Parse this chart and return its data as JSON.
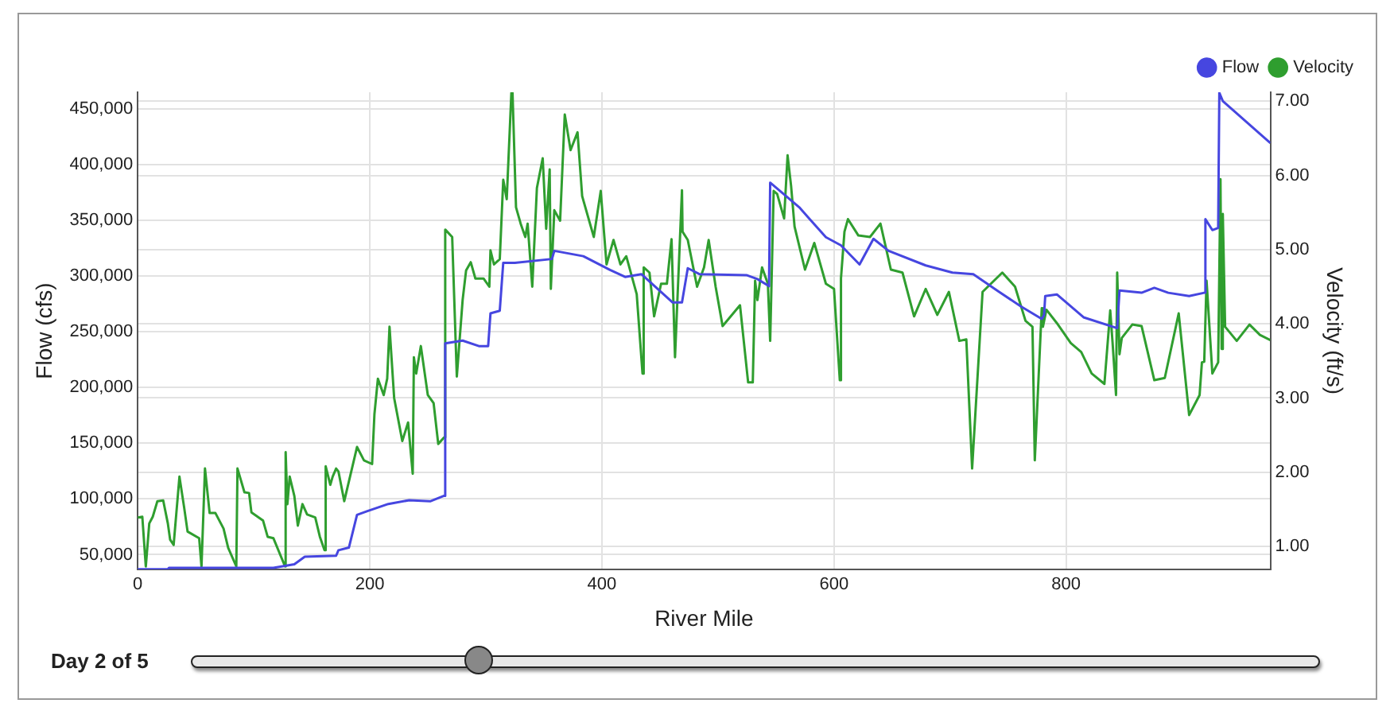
{
  "chart_data": {
    "type": "line",
    "xlabel": "River Mile",
    "ylabel": "Flow (cfs)",
    "y2label": "Velocity (ft/s)",
    "legend": "top right",
    "grid": true,
    "marker": "none",
    "line_style": "solid",
    "xlim": [
      0,
      976
    ],
    "xticks": [
      0,
      200,
      400,
      600,
      800
    ],
    "ylim": [
      36800,
      464700
    ],
    "yticks": [
      {
        "value": 50000,
        "label": "50,000"
      },
      {
        "value": 100000,
        "label": "100,000"
      },
      {
        "value": 150000,
        "label": "150,000"
      },
      {
        "value": 200000,
        "label": "200,000"
      },
      {
        "value": 250000,
        "label": "250,000"
      },
      {
        "value": 300000,
        "label": "300,000"
      },
      {
        "value": 350000,
        "label": "350,000"
      },
      {
        "value": 400000,
        "label": "400,000"
      },
      {
        "value": 450000,
        "label": "450,000"
      }
    ],
    "y2lim": [
      0.69,
      7.12
    ],
    "y2ticks": [
      {
        "value": 1,
        "label": "1.00"
      },
      {
        "value": 2,
        "label": "2.00"
      },
      {
        "value": 3,
        "label": "3.00"
      },
      {
        "value": 4,
        "label": "4.00"
      },
      {
        "value": 5,
        "label": "5.00"
      },
      {
        "value": 6,
        "label": "6.00"
      },
      {
        "value": 7,
        "label": "7.00"
      }
    ],
    "annotations": [
      "Day 2 of 5"
    ],
    "series": [
      {
        "name": "Flow",
        "color": "#4646e0",
        "x": [
          0,
          26,
          27,
          117,
          135,
          144,
          171,
          173,
          182,
          189,
          198,
          216,
          234,
          252,
          264,
          265,
          280,
          294,
          302,
          304,
          312,
          315,
          325,
          357,
          359,
          384,
          407,
          420,
          434,
          461,
          469,
          474,
          484,
          525,
          534,
          544,
          545,
          570,
          593,
          606,
          622,
          634,
          647,
          679,
          702,
          720,
          742,
          761,
          779,
          781,
          782,
          792,
          815,
          844,
          846,
          865,
          876,
          888,
          906,
          919,
          920,
          926,
          931,
          932,
          935,
          976
        ],
        "values": [
          37000,
          37000,
          38300,
          38300,
          41400,
          48200,
          49100,
          54000,
          56400,
          85700,
          89100,
          95500,
          98900,
          97900,
          102800,
          239500,
          242000,
          237100,
          237100,
          266400,
          268800,
          311800,
          311800,
          315200,
          322500,
          317700,
          305400,
          299100,
          301600,
          276200,
          276200,
          306900,
          301600,
          300600,
          297200,
          290800,
          383600,
          361600,
          334700,
          327400,
          310300,
          333300,
          322500,
          309400,
          303000,
          301600,
          285900,
          272700,
          261500,
          265000,
          282000,
          283400,
          262900,
          253200,
          286900,
          284900,
          289300,
          284900,
          282000,
          284900,
          350900,
          341100,
          343000,
          464200,
          456800,
          419200
        ]
      },
      {
        "name": "Velocity",
        "color": "#2f9e2f",
        "axis": "y2",
        "x": [
          0,
          4,
          7,
          10,
          13,
          17,
          22,
          26,
          28,
          31,
          36,
          40,
          43,
          53,
          55,
          58,
          62,
          67,
          74,
          78,
          85,
          86,
          92,
          96,
          98,
          108,
          112,
          117,
          127,
          127.5,
          129,
          131,
          135,
          138,
          142,
          146,
          153,
          157,
          161,
          162,
          166,
          168,
          171,
          173,
          178,
          189,
          195,
          202,
          204,
          207,
          212,
          215,
          217,
          221,
          228,
          233,
          237,
          238,
          240,
          244,
          250,
          255,
          259,
          264,
          265,
          271,
          275,
          280,
          283,
          287,
          291,
          298,
          303,
          304,
          307,
          312,
          315,
          318,
          322,
          323,
          326,
          330,
          334,
          336,
          340,
          344,
          349,
          352,
          355,
          356,
          359,
          364,
          368,
          373,
          379,
          383,
          393,
          399,
          404,
          410,
          416,
          421,
          430,
          435,
          436,
          441,
          445,
          451,
          456,
          460,
          463,
          469,
          469.5,
          474,
          482,
          488,
          492,
          498,
          504,
          519,
          526,
          530,
          532,
          534,
          538,
          543,
          545,
          548,
          551,
          557,
          560,
          563,
          566,
          575,
          583,
          593,
          600,
          605,
          606,
          609,
          612,
          621,
          631,
          640,
          649,
          659,
          669,
          679,
          689,
          699,
          708,
          714,
          719,
          728,
          745,
          756,
          765,
          771,
          773,
          779,
          780,
          783,
          792,
          804,
          813,
          822,
          833,
          838,
          840,
          843,
          844,
          846,
          848,
          857,
          865,
          876,
          885,
          897,
          906,
          915,
          917,
          919,
          921,
          926,
          931,
          933,
          934,
          935,
          937,
          947,
          958,
          967,
          976
        ],
        "values": [
          1.39,
          1.4,
          0.73,
          1.31,
          1.4,
          1.61,
          1.62,
          1.31,
          1.09,
          1.02,
          1.94,
          1.53,
          1.2,
          1.11,
          0.73,
          2.05,
          1.45,
          1.45,
          1.24,
          0.98,
          0.73,
          2.05,
          1.73,
          1.72,
          1.46,
          1.35,
          1.13,
          1.11,
          0.73,
          2.27,
          1.57,
          1.94,
          1.68,
          1.28,
          1.57,
          1.43,
          1.39,
          1.13,
          0.95,
          2.08,
          1.83,
          1.94,
          2.05,
          2.01,
          1.61,
          2.34,
          2.16,
          2.11,
          2.78,
          3.26,
          3.04,
          3.26,
          3.96,
          3.0,
          2.42,
          2.67,
          1.98,
          3.55,
          3.33,
          3.7,
          3.04,
          2.93,
          2.38,
          2.47,
          5.27,
          5.17,
          3.29,
          4.32,
          4.72,
          4.83,
          4.61,
          4.61,
          4.5,
          4.99,
          4.8,
          4.87,
          5.94,
          5.68,
          7.11,
          7.11,
          5.57,
          5.35,
          5.17,
          5.35,
          4.5,
          5.83,
          6.23,
          5.28,
          6.08,
          4.47,
          5.53,
          5.39,
          6.82,
          6.34,
          6.58,
          5.72,
          5.17,
          5.79,
          4.8,
          5.13,
          4.8,
          4.91,
          4.4,
          3.33,
          4.76,
          4.69,
          4.1,
          4.54,
          4.54,
          5.14,
          3.55,
          5.8,
          5.24,
          5.13,
          4.5,
          4.76,
          5.13,
          4.5,
          3.97,
          4.25,
          3.21,
          3.21,
          4.58,
          4.32,
          4.76,
          4.54,
          3.77,
          5.79,
          5.75,
          5.42,
          6.27,
          5.86,
          5.31,
          4.73,
          5.09,
          4.54,
          4.47,
          3.24,
          4.61,
          5.24,
          5.41,
          5.19,
          5.17,
          5.35,
          4.73,
          4.69,
          4.1,
          4.47,
          4.12,
          4.43,
          3.77,
          3.79,
          2.05,
          4.43,
          4.69,
          4.5,
          4.04,
          3.96,
          2.16,
          4.21,
          3.96,
          4.19,
          4.01,
          3.74,
          3.62,
          3.33,
          3.19,
          4.18,
          3.75,
          3.04,
          4.69,
          3.59,
          3.81,
          3.99,
          3.97,
          3.24,
          3.27,
          4.14,
          2.77,
          3.04,
          3.48,
          3.49,
          4.58,
          3.33,
          3.48,
          5.95,
          3.66,
          5.48,
          3.96,
          3.77,
          3.99,
          3.85,
          3.78
        ]
      }
    ]
  }
}
